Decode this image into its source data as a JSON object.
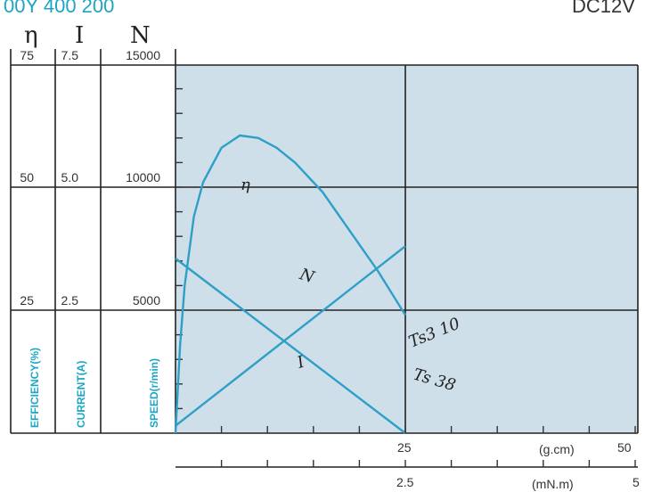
{
  "header": {
    "top_left_fragment": "00Y 400 200",
    "top_right_fragment": "DC12V"
  },
  "chart_data": {
    "type": "line",
    "axis_symbols": {
      "efficiency": "η",
      "current": "I",
      "speed": "N"
    },
    "axes_labels": {
      "efficiency": "EFFICIENCY(%)",
      "current": "CURRENT(A)",
      "speed": "SPEED(r/min)"
    },
    "left_ticks": [
      {
        "efficiency": "75",
        "current": "7.5",
        "speed": "15000"
      },
      {
        "efficiency": "50",
        "current": "5.0",
        "speed": "10000"
      },
      {
        "efficiency": "25",
        "current": "2.5",
        "speed": "5000"
      }
    ],
    "speed_range": [
      0,
      15000
    ],
    "x_axis": {
      "torque_gcm": {
        "range": [
          0,
          50
        ],
        "tick_labels": [
          "25",
          "50"
        ],
        "unit": "(g.cm)"
      },
      "torque_mNm": {
        "range": [
          0,
          5
        ],
        "tick_labels": [
          "2.5",
          "5"
        ],
        "unit": "(mN.m)"
      }
    },
    "series": [
      {
        "name": "η",
        "quantity": "efficiency",
        "unit": "%",
        "x_gcm": [
          0,
          0.5,
          1,
          2,
          3,
          5,
          7,
          9,
          11,
          13,
          16,
          19,
          22,
          25
        ],
        "values": [
          0,
          18,
          30,
          44,
          51,
          58,
          60.5,
          60,
          58,
          55,
          49,
          41,
          33,
          24
        ]
      },
      {
        "name": "N",
        "quantity": "speed",
        "unit": "r/min",
        "x_gcm": [
          0,
          25
        ],
        "values": [
          7100,
          0
        ]
      },
      {
        "name": "I",
        "quantity": "current",
        "unit": "A",
        "x_gcm": [
          0,
          25
        ],
        "values": [
          0.15,
          3.8
        ]
      }
    ],
    "annotations": [
      "Ts3 10",
      "Ts 38"
    ],
    "grid": true
  }
}
